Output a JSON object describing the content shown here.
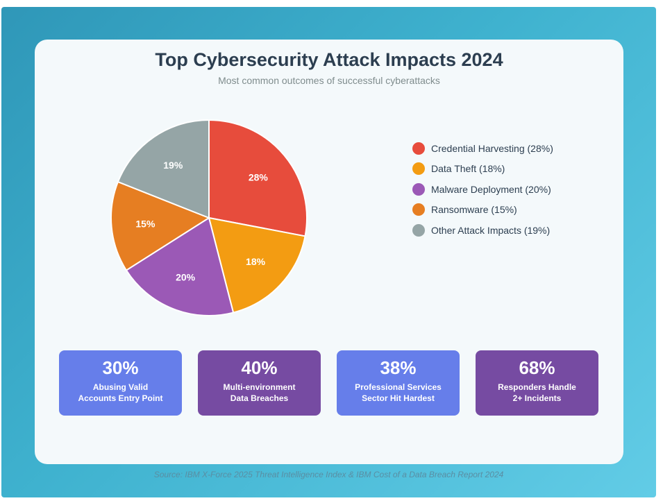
{
  "colors": {
    "credential_harvesting": "#e74c3c",
    "data_theft": "#f39c12",
    "malware_deployment": "#9b59b6",
    "ransomware": "#e67e22",
    "other": "#95a5a6",
    "stat_blue": "#667eea",
    "stat_purple": "#764ba2"
  },
  "chart_data": {
    "type": "pie",
    "title": "Top Cybersecurity Attack Impacts 2024",
    "subtitle": "Most common outcomes of successful cyberattacks",
    "slices": [
      {
        "label": "Credential Harvesting",
        "value": 28,
        "data_label": "28%",
        "legend": "Credential Harvesting (28%)",
        "color": "#e74c3c"
      },
      {
        "label": "Data Theft",
        "value": 18,
        "data_label": "18%",
        "legend": "Data Theft (18%)",
        "color": "#f39c12"
      },
      {
        "label": "Malware Deployment",
        "value": 20,
        "data_label": "20%",
        "legend": "Malware Deployment (20%)",
        "color": "#9b59b6"
      },
      {
        "label": "Ransomware",
        "value": 15,
        "data_label": "15%",
        "legend": "Ransomware (15%)",
        "color": "#e67e22"
      },
      {
        "label": "Other Attack Impacts",
        "value": 19,
        "data_label": "19%",
        "legend": "Other Attack Impacts (19%)",
        "color": "#95a5a6"
      }
    ],
    "legend_position": "right"
  },
  "stats": [
    {
      "value": "30%",
      "label": "Abusing Valid\nAccounts Entry Point",
      "color": "#667eea"
    },
    {
      "value": "40%",
      "label": "Multi-environment\nData Breaches",
      "color": "#764ba2"
    },
    {
      "value": "38%",
      "label": "Professional Services\nSector Hit Hardest",
      "color": "#667eea"
    },
    {
      "value": "68%",
      "label": "Responders Handle\n2+ Incidents",
      "color": "#764ba2"
    }
  ],
  "source": "Source: IBM X-Force 2025 Threat Intelligence Index & IBM Cost of a Data Breach Report 2024"
}
